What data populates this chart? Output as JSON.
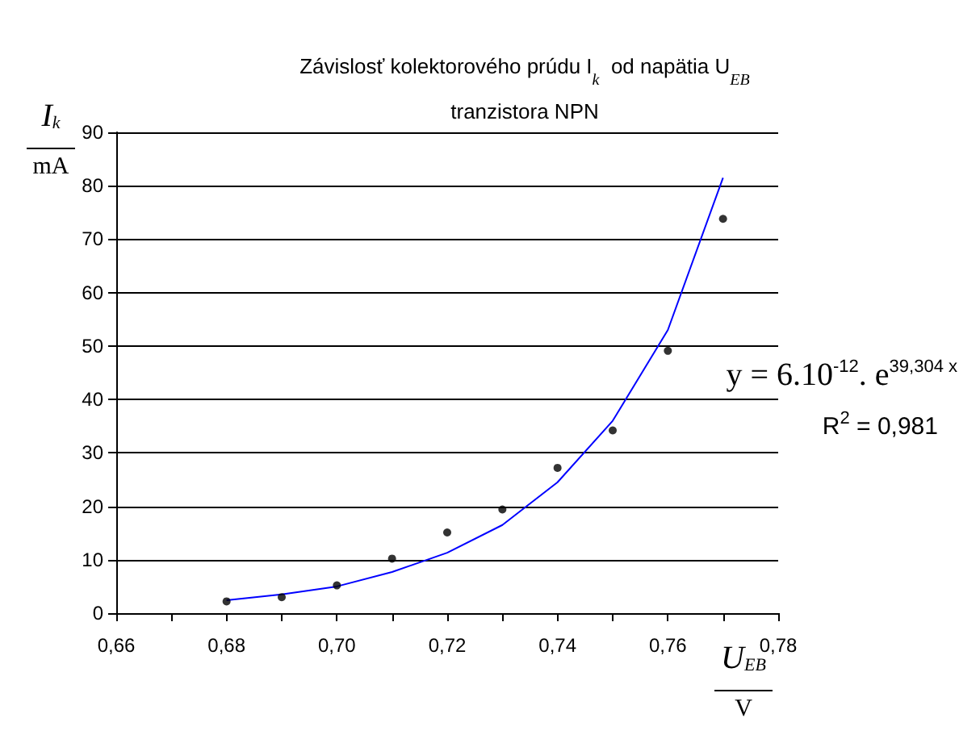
{
  "chart_data": {
    "type": "scatter",
    "title": "Závislosť kolektorového prúdu I$_{k}$  od napätia U$_{EB}$\ntranzistora NPN",
    "xlabel": "U$_{EB}$\nV",
    "ylabel": "I$_{k}$\nmA",
    "x": [
      0.68,
      0.69,
      0.7,
      0.71,
      0.72,
      0.73,
      0.74,
      0.75,
      0.76,
      0.77
    ],
    "series": [
      {
        "color": "#000000",
        "values": [
          2.2,
          3,
          5.2,
          10.2,
          15.1,
          19.4,
          27.2,
          34.2,
          49.1,
          73.8
        ]
      },
      {
        "type": "line",
        "color": "#0000ff",
        "marker": "none",
        "x": [
          0.68,
          0.69,
          0.7,
          0.71,
          0.72,
          0.73,
          0.74,
          0.75,
          0.76,
          0.77
        ],
        "values": [
          2.4,
          3.5,
          5,
          7.7,
          11.3,
          16.5,
          24.5,
          36,
          53,
          81.5
        ]
      }
    ],
    "annotations": [
      "y = 6.10$^{-12}$. e$^{39,304 x}$",
      "R$^{2}$ = 0,981"
    ],
    "xlim": [
      0.66,
      0.78
    ],
    "xticks": [
      {
        "value": 0.66,
        "label": "0,66"
      },
      {
        "value": 0.67,
        "label": null
      },
      {
        "value": 0.68,
        "label": "0,68"
      },
      {
        "value": 0.69,
        "label": null
      },
      {
        "value": 0.7,
        "label": "0,70"
      },
      {
        "value": 0.71,
        "label": null
      },
      {
        "value": 0.72,
        "label": "0,72"
      },
      {
        "value": 0.73,
        "label": null
      },
      {
        "value": 0.74,
        "label": "0,74"
      },
      {
        "value": 0.75,
        "label": null
      },
      {
        "value": 0.76,
        "label": "0,76"
      },
      {
        "value": 0.77,
        "label": null
      },
      {
        "value": 0.78,
        "label": "0,78"
      }
    ],
    "ylim": [
      0,
      90
    ],
    "yticks": [
      0,
      10,
      20,
      30,
      40,
      50,
      60,
      70,
      80,
      90
    ],
    "grid": "y",
    "marker": "circle"
  }
}
